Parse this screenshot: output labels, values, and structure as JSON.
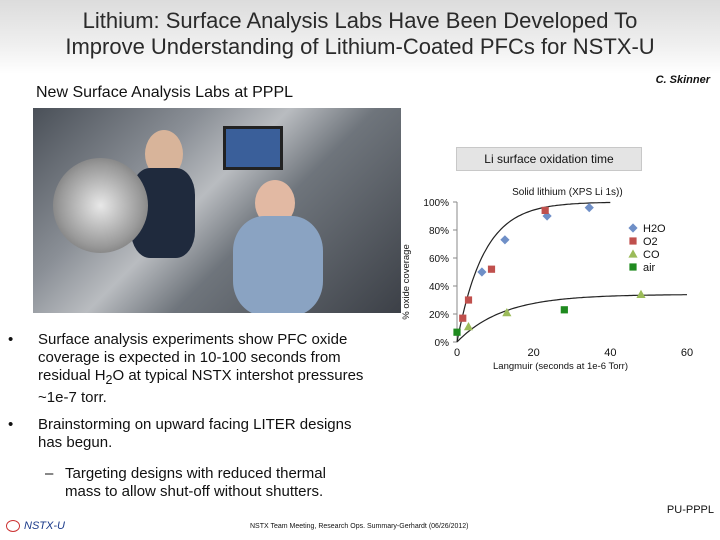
{
  "header": {
    "title_line1": "Lithium: Surface Analysis Labs Have Been Developed To",
    "title_line2": "Improve Understanding of Lithium-Coated PFCs for NSTX-U",
    "author": "C. Skinner"
  },
  "labs": {
    "heading": "New Surface Analysis Labs at PPPL"
  },
  "chart_box_title": "Li surface oxidation time",
  "chart_data": {
    "type": "scatter",
    "title": "Li surface oxidation time",
    "annotation": "Solid lithium (XPS Li 1s))",
    "xlabel": "Langmuir (seconds at 1e-6 Torr)",
    "ylabel": "% oxide coverage",
    "xlim": [
      0,
      60
    ],
    "ylim": [
      0,
      100
    ],
    "x_ticks": [
      "0",
      "20",
      "40",
      "60"
    ],
    "y_ticks": [
      "0%",
      "20%",
      "40%",
      "60%",
      "80%",
      "100%"
    ],
    "legend_position": "right",
    "series": [
      {
        "name": "H2O",
        "color": "#6f8fc7",
        "marker": "diamond",
        "points": [
          [
            6.5,
            50
          ],
          [
            12.5,
            73
          ],
          [
            23.5,
            90
          ],
          [
            34.5,
            96
          ]
        ]
      },
      {
        "name": "O2",
        "color": "#c0504d",
        "marker": "square",
        "points": [
          [
            1.5,
            17
          ],
          [
            3,
            30
          ],
          [
            9,
            52
          ],
          [
            23,
            94
          ]
        ]
      },
      {
        "name": "CO",
        "color": "#9bbb59",
        "marker": "triangle",
        "points": [
          [
            3,
            11
          ],
          [
            13,
            21
          ],
          [
            48,
            34
          ]
        ]
      },
      {
        "name": "air",
        "color": "#1f8a1f",
        "marker": "square",
        "points": [
          [
            0,
            7
          ],
          [
            28,
            23
          ]
        ]
      }
    ]
  },
  "bullets": [
    {
      "marker": "•",
      "lines": [
        "Surface analysis experiments show PFC oxide",
        "coverage is expected in 10-100 seconds from"
      ],
      "line3_prefix": "residual H",
      "line3_sub": "2",
      "line3_suffix": "O at typical NSTX intershot pressures",
      "line4": "~1e-7 torr."
    },
    {
      "marker": "•",
      "lines": [
        "Brainstorming on upward facing LITER designs",
        "has begun."
      ]
    }
  ],
  "sub_bullet": {
    "marker": "–",
    "line1": "Targeting designs with reduced thermal",
    "line2": "mass to allow shut-off without shutters."
  },
  "footer": {
    "logo_text": "NSTX-U",
    "center": "NSTX Team Meeting, Research Ops. Summary-Gerhardt (06/26/2012)",
    "right": "PU-PPPL"
  }
}
